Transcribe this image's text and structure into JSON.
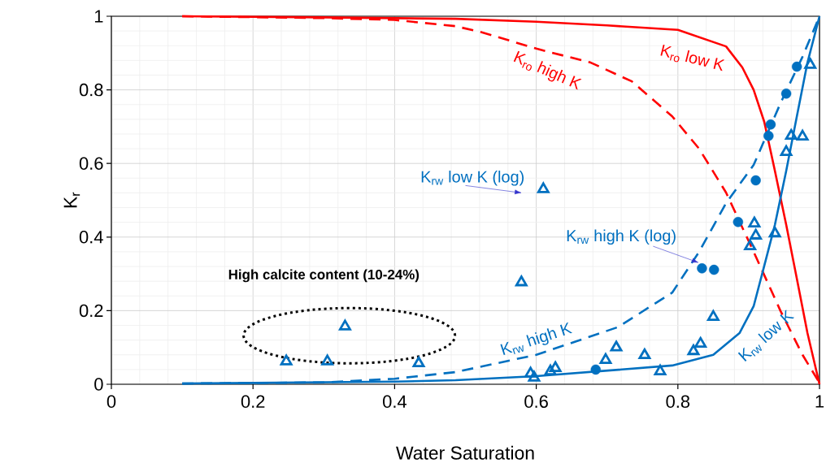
{
  "chart_data": {
    "type": "line",
    "xlabel": "Water Saturation",
    "ylabel": "K$_{r}$",
    "xlim": [
      0,
      1
    ],
    "ylim": [
      0,
      1
    ],
    "xticks": [
      0,
      0.2,
      0.4,
      0.6,
      0.8,
      1
    ],
    "yticks": [
      0,
      0.2,
      0.4,
      0.6,
      0.8,
      1
    ],
    "grid": true,
    "annotations": [
      "High calcite content (10-24%)"
    ],
    "series": [
      {
        "name": "K$_{ro}$ low K",
        "line_style": "solid",
        "marker": "none",
        "color": "#ff0000",
        "x": [
          0.1,
          0.3,
          0.486,
          0.6,
          0.7,
          0.8,
          0.868,
          0.891,
          0.907,
          0.922,
          0.937,
          0.953,
          0.968,
          0.983,
          1.0
        ],
        "values": [
          1.0,
          0.997,
          0.993,
          0.985,
          0.975,
          0.963,
          0.918,
          0.861,
          0.8,
          0.713,
          0.58,
          0.433,
          0.287,
          0.139,
          0.0
        ]
      },
      {
        "name": "K$_{ro}$ high K",
        "line_style": "dashed",
        "marker": "none",
        "color": "#ff0000",
        "x": [
          0.1,
          0.3,
          0.4,
          0.486,
          0.524,
          0.6,
          0.677,
          0.735,
          0.792,
          0.83,
          0.868,
          0.907,
          0.945,
          0.976,
          0.999
        ],
        "values": [
          1.0,
          0.995,
          0.99,
          0.973,
          0.956,
          0.912,
          0.874,
          0.823,
          0.728,
          0.64,
          0.521,
          0.36,
          0.199,
          0.08,
          0.007
        ]
      },
      {
        "name": "K$_{rw}$ low K",
        "line_style": "solid",
        "marker": "none",
        "color": "#0070c0",
        "x": [
          0.1,
          0.4,
          0.486,
          0.6,
          0.792,
          0.85,
          0.887,
          0.907,
          0.922,
          0.937,
          0.953,
          0.968,
          0.983,
          1.0
        ],
        "values": [
          0.002,
          0.007,
          0.011,
          0.022,
          0.051,
          0.08,
          0.139,
          0.212,
          0.322,
          0.433,
          0.58,
          0.728,
          0.874,
          1.0
        ]
      },
      {
        "name": "K$_{rw}$ high K",
        "line_style": "dashed",
        "marker": "none",
        "color": "#0070c0",
        "x": [
          0.1,
          0.3,
          0.4,
          0.486,
          0.6,
          0.715,
          0.792,
          0.83,
          0.868,
          0.907,
          0.945,
          0.976,
          1.0
        ],
        "values": [
          0.002,
          0.005,
          0.015,
          0.033,
          0.08,
          0.155,
          0.249,
          0.36,
          0.492,
          0.596,
          0.764,
          0.89,
          1.0
        ]
      },
      {
        "name": "K$_{rw}$ low K (log)",
        "type": "scatter",
        "marker": "triangle",
        "color": "#0070c0",
        "x": [
          0.247,
          0.305,
          0.33,
          0.434,
          0.579,
          0.61,
          0.592,
          0.597,
          0.62,
          0.627,
          0.698,
          0.713,
          0.753,
          0.775,
          0.822,
          0.832,
          0.85,
          0.902,
          0.908,
          0.91,
          0.937,
          0.953,
          0.96,
          0.976,
          0.987
        ],
        "values": [
          0.062,
          0.062,
          0.157,
          0.057,
          0.277,
          0.53,
          0.029,
          0.018,
          0.035,
          0.044,
          0.066,
          0.1,
          0.079,
          0.035,
          0.09,
          0.11,
          0.183,
          0.375,
          0.437,
          0.404,
          0.41,
          0.631,
          0.675,
          0.673,
          0.868
        ]
      },
      {
        "name": "K$_{rw}$ high K (log)",
        "type": "scatter",
        "marker": "circle",
        "color": "#0070c0",
        "x": [
          0.684,
          0.834,
          0.851,
          0.885,
          0.91,
          0.928,
          0.931,
          0.953,
          0.968
        ],
        "values": [
          0.04,
          0.315,
          0.311,
          0.441,
          0.554,
          0.675,
          0.706,
          0.79,
          0.863
        ]
      }
    ]
  }
}
